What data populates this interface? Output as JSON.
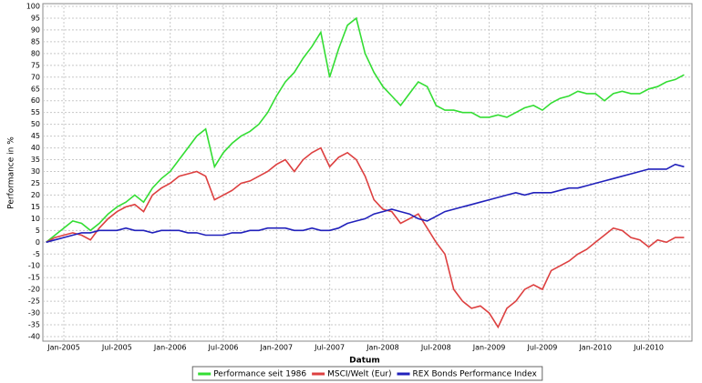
{
  "chart_data": {
    "type": "line",
    "y_label": "Performance in %",
    "x_label": "Datum",
    "x": [
      "Nov-2004",
      "Dec-2004",
      "Jan-2005",
      "Feb-2005",
      "Mar-2005",
      "Apr-2005",
      "May-2005",
      "Jun-2005",
      "Jul-2005",
      "Aug-2005",
      "Sep-2005",
      "Oct-2005",
      "Nov-2005",
      "Dec-2005",
      "Jan-2006",
      "Feb-2006",
      "Mar-2006",
      "Apr-2006",
      "May-2006",
      "Jun-2006",
      "Jul-2006",
      "Aug-2006",
      "Sep-2006",
      "Oct-2006",
      "Nov-2006",
      "Dec-2006",
      "Jan-2007",
      "Feb-2007",
      "Mar-2007",
      "Apr-2007",
      "May-2007",
      "Jun-2007",
      "Jul-2007",
      "Aug-2007",
      "Sep-2007",
      "Oct-2007",
      "Nov-2007",
      "Dec-2007",
      "Jan-2008",
      "Feb-2008",
      "Mar-2008",
      "Apr-2008",
      "May-2008",
      "Jun-2008",
      "Jul-2008",
      "Aug-2008",
      "Sep-2008",
      "Oct-2008",
      "Nov-2008",
      "Dec-2008",
      "Jan-2009",
      "Feb-2009",
      "Mar-2009",
      "Apr-2009",
      "May-2009",
      "Jun-2009",
      "Jul-2009",
      "Aug-2009",
      "Sep-2009",
      "Oct-2009",
      "Nov-2009",
      "Dec-2009",
      "Jan-2010",
      "Feb-2010",
      "Mar-2010",
      "Apr-2010",
      "May-2010",
      "Jun-2010",
      "Jul-2010",
      "Aug-2010",
      "Sep-2010",
      "Oct-2010",
      "Nov-2010"
    ],
    "xticks": [
      "Jan-2005",
      "Jul-2005",
      "Jan-2006",
      "Jul-2006",
      "Jan-2007",
      "Jul-2007",
      "Jan-2008",
      "Jul-2008",
      "Jan-2009",
      "Jul-2009",
      "Jan-2010",
      "Jul-2010"
    ],
    "ylim": [
      -40,
      100
    ],
    "yticks": [
      -40,
      -35,
      -30,
      -25,
      -20,
      -15,
      -10,
      -5,
      0,
      5,
      10,
      15,
      20,
      25,
      30,
      35,
      40,
      45,
      50,
      55,
      60,
      65,
      70,
      75,
      80,
      85,
      90,
      95,
      100
    ],
    "grid": true,
    "legend": "bottom",
    "series": [
      {
        "name": "Performance seit 1986",
        "color": "#33dd33",
        "values": [
          0,
          3,
          6,
          9,
          8,
          5,
          8,
          12,
          15,
          17,
          20,
          17,
          23,
          27,
          30,
          35,
          40,
          45,
          48,
          32,
          38,
          42,
          45,
          47,
          50,
          55,
          62,
          68,
          72,
          78,
          83,
          89,
          70,
          82,
          92,
          95,
          80,
          72,
          66,
          62,
          58,
          63,
          68,
          66,
          58,
          56,
          56,
          55,
          55,
          53,
          53,
          54,
          53,
          55,
          57,
          58,
          56,
          59,
          61,
          62,
          64,
          63,
          63,
          60,
          63,
          64,
          63,
          63,
          65,
          66,
          68,
          69,
          71
        ]
      },
      {
        "name": "MSCI/Welt (Eur)",
        "color": "#dd4040",
        "values": [
          0,
          2,
          3,
          4,
          3,
          1,
          6,
          10,
          13,
          15,
          16,
          13,
          20,
          23,
          25,
          28,
          29,
          30,
          28,
          18,
          20,
          22,
          25,
          26,
          28,
          30,
          33,
          35,
          30,
          35,
          38,
          40,
          32,
          36,
          38,
          35,
          28,
          18,
          14,
          13,
          8,
          10,
          12,
          6,
          0,
          -5,
          -20,
          -25,
          -28,
          -27,
          -30,
          -36,
          -28,
          -25,
          -20,
          -18,
          -20,
          -12,
          -10,
          -8,
          -5,
          -3,
          0,
          3,
          6,
          5,
          2,
          1,
          -2,
          1,
          0,
          2,
          2
        ]
      },
      {
        "name": "REX Bonds Performance Index",
        "color": "#2020bb",
        "values": [
          0,
          1,
          2,
          3,
          4,
          4,
          5,
          5,
          5,
          6,
          5,
          5,
          4,
          5,
          5,
          5,
          4,
          4,
          3,
          3,
          3,
          4,
          4,
          5,
          5,
          6,
          6,
          6,
          5,
          5,
          6,
          5,
          5,
          6,
          8,
          9,
          10,
          12,
          13,
          14,
          13,
          12,
          10,
          9,
          11,
          13,
          14,
          15,
          16,
          17,
          18,
          19,
          20,
          21,
          20,
          21,
          21,
          21,
          22,
          23,
          23,
          24,
          25,
          26,
          27,
          28,
          29,
          30,
          31,
          31,
          31,
          33,
          32
        ]
      }
    ]
  }
}
